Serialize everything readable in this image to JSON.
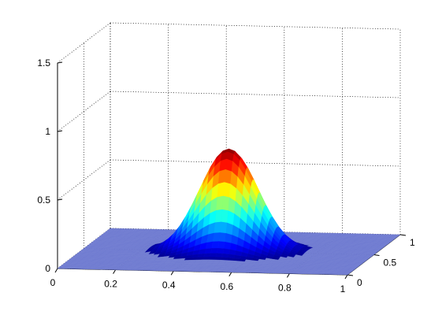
{
  "chart_data": {
    "type": "surface3d",
    "title": "",
    "xlabel": "",
    "ylabel": "",
    "zlabel": "",
    "xlim": [
      0,
      1
    ],
    "ylim": [
      0,
      1
    ],
    "zlim": [
      0,
      1.5
    ],
    "xticks": [
      "0",
      "0.2",
      "0.4",
      "0.6",
      "0.8",
      "1"
    ],
    "yticks": [
      "0",
      "0.5",
      "1"
    ],
    "zticks": [
      "0",
      "0.5",
      "1",
      "1.5"
    ],
    "grid": true,
    "colormap": "jet",
    "surface": {
      "peak_x": 0.5,
      "peak_y": 0.5,
      "peak_z": 0.75,
      "width": 0.1,
      "baseline_z": 0
    },
    "colors": {
      "floor": "#6e7ad0",
      "grid": "#000000",
      "axis": "#000000"
    }
  }
}
